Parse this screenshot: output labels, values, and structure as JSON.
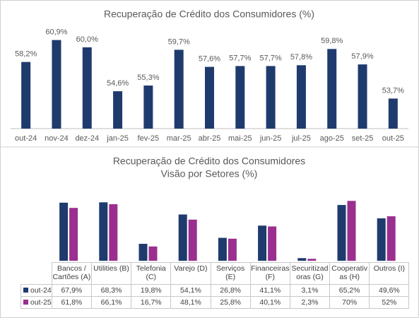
{
  "chart_data": [
    {
      "type": "bar",
      "title": "Recuperação de Crédito dos Consumidores (%)",
      "categories": [
        "out-24",
        "nov-24",
        "dez-24",
        "jan-25",
        "fev-25",
        "mar-25",
        "abr-25",
        "mai-25",
        "jun-25",
        "jul-25",
        "ago-25",
        "set-25",
        "out-25"
      ],
      "values": [
        58.2,
        60.9,
        60.0,
        54.6,
        55.3,
        59.7,
        57.6,
        57.7,
        57.7,
        57.8,
        59.8,
        57.9,
        53.7
      ],
      "value_labels": [
        "58,2%",
        "60,9%",
        "60,0%",
        "54,6%",
        "55,3%",
        "59,7%",
        "57,6%",
        "57,7%",
        "57,7%",
        "57,8%",
        "59,8%",
        "57,9%",
        "53,7%"
      ],
      "color": "#1f3b6e",
      "ylim": [
        50,
        62
      ]
    },
    {
      "type": "grouped-bar",
      "title": "Recuperação de Crédito dos Consumidores",
      "subtitle": "Visão por Setores (%)",
      "categories": [
        "Bancos / Cartões (A)",
        "Utilities (B)",
        "Telefonia (C)",
        "Varejo (D)",
        "Serviços (E)",
        "Financeiras (F)",
        "Securitizadoras (G)",
        "Cooperativas (H)",
        "Outros (I)"
      ],
      "series": [
        {
          "name": "out-24",
          "color": "#1f3b6e",
          "values": [
            67.9,
            68.3,
            19.8,
            54.1,
            26.8,
            41.1,
            3.1,
            65.2,
            49.6
          ],
          "value_labels": [
            "67,9%",
            "68,3%",
            "19,8%",
            "54,1%",
            "26,8%",
            "41,1%",
            "3,1%",
            "65,2%",
            "49,6%"
          ]
        },
        {
          "name": "out-25",
          "color": "#9b2f8f",
          "values": [
            61.8,
            66.1,
            16.7,
            48.1,
            25.8,
            40.1,
            2.3,
            70,
            52
          ],
          "value_labels": [
            "61,8%",
            "66,1%",
            "16,7%",
            "48,1%",
            "25,8%",
            "40,1%",
            "2,3%",
            "70%",
            "52%"
          ]
        }
      ],
      "ylim": [
        0,
        76
      ]
    }
  ]
}
